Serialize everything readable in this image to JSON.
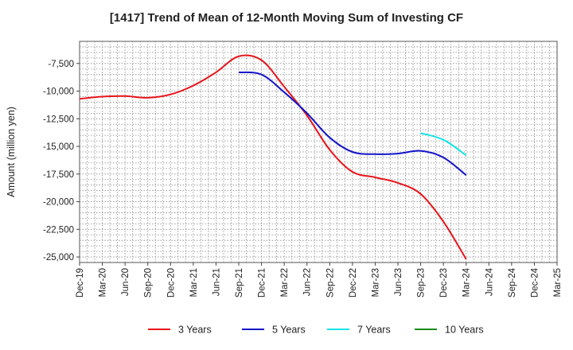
{
  "chart_data": {
    "type": "line",
    "title": "[1417]  Trend of Mean of 12-Month Moving Sum of Investing CF",
    "xlabel": "",
    "ylabel": "Amount (million yen)",
    "ylim": [
      -25500,
      -5500
    ],
    "yticks": [
      -7500,
      -10000,
      -12500,
      -15000,
      -17500,
      -20000,
      -22500,
      -25000
    ],
    "ytick_labels": [
      "-7,500",
      "-10,000",
      "-12,500",
      "-15,000",
      "-17,500",
      "-20,000",
      "-22,500",
      "-25,000"
    ],
    "categories": [
      "Dec-19",
      "Mar-20",
      "Jun-20",
      "Sep-20",
      "Dec-20",
      "Mar-21",
      "Jun-21",
      "Sep-21",
      "Dec-21",
      "Mar-22",
      "Jun-22",
      "Sep-22",
      "Dec-22",
      "Mar-23",
      "Jun-23",
      "Sep-23",
      "Dec-23",
      "Mar-24",
      "Jun-24",
      "Sep-24",
      "Dec-24",
      "Mar-25"
    ],
    "grid": true,
    "legend_position": "bottom",
    "series": [
      {
        "name": "3 Years",
        "color": "#e8141b",
        "values": [
          -10700,
          -10500,
          -10450,
          -10600,
          -10300,
          -9500,
          -8300,
          -6850,
          -7200,
          -9600,
          -12200,
          -15300,
          -17300,
          -17800,
          -18300,
          -19300,
          -21800,
          -25200,
          null,
          null,
          null,
          null
        ]
      },
      {
        "name": "5 Years",
        "color": "#1414c8",
        "values": [
          null,
          null,
          null,
          null,
          null,
          null,
          null,
          -8300,
          -8500,
          -10100,
          -12000,
          -14200,
          -15500,
          -15700,
          -15650,
          -15400,
          -16000,
          -17600,
          null,
          null,
          null,
          null
        ]
      },
      {
        "name": "7 Years",
        "color": "#14e6e6",
        "values": [
          null,
          null,
          null,
          null,
          null,
          null,
          null,
          null,
          null,
          null,
          null,
          null,
          null,
          null,
          null,
          -13800,
          -14400,
          -15800,
          null,
          null,
          null,
          null
        ]
      },
      {
        "name": "10 Years",
        "color": "#1a8a1a",
        "values": [
          null,
          null,
          null,
          null,
          null,
          null,
          null,
          null,
          null,
          null,
          null,
          null,
          null,
          null,
          null,
          null,
          null,
          null,
          null,
          null,
          null,
          null
        ]
      }
    ]
  }
}
